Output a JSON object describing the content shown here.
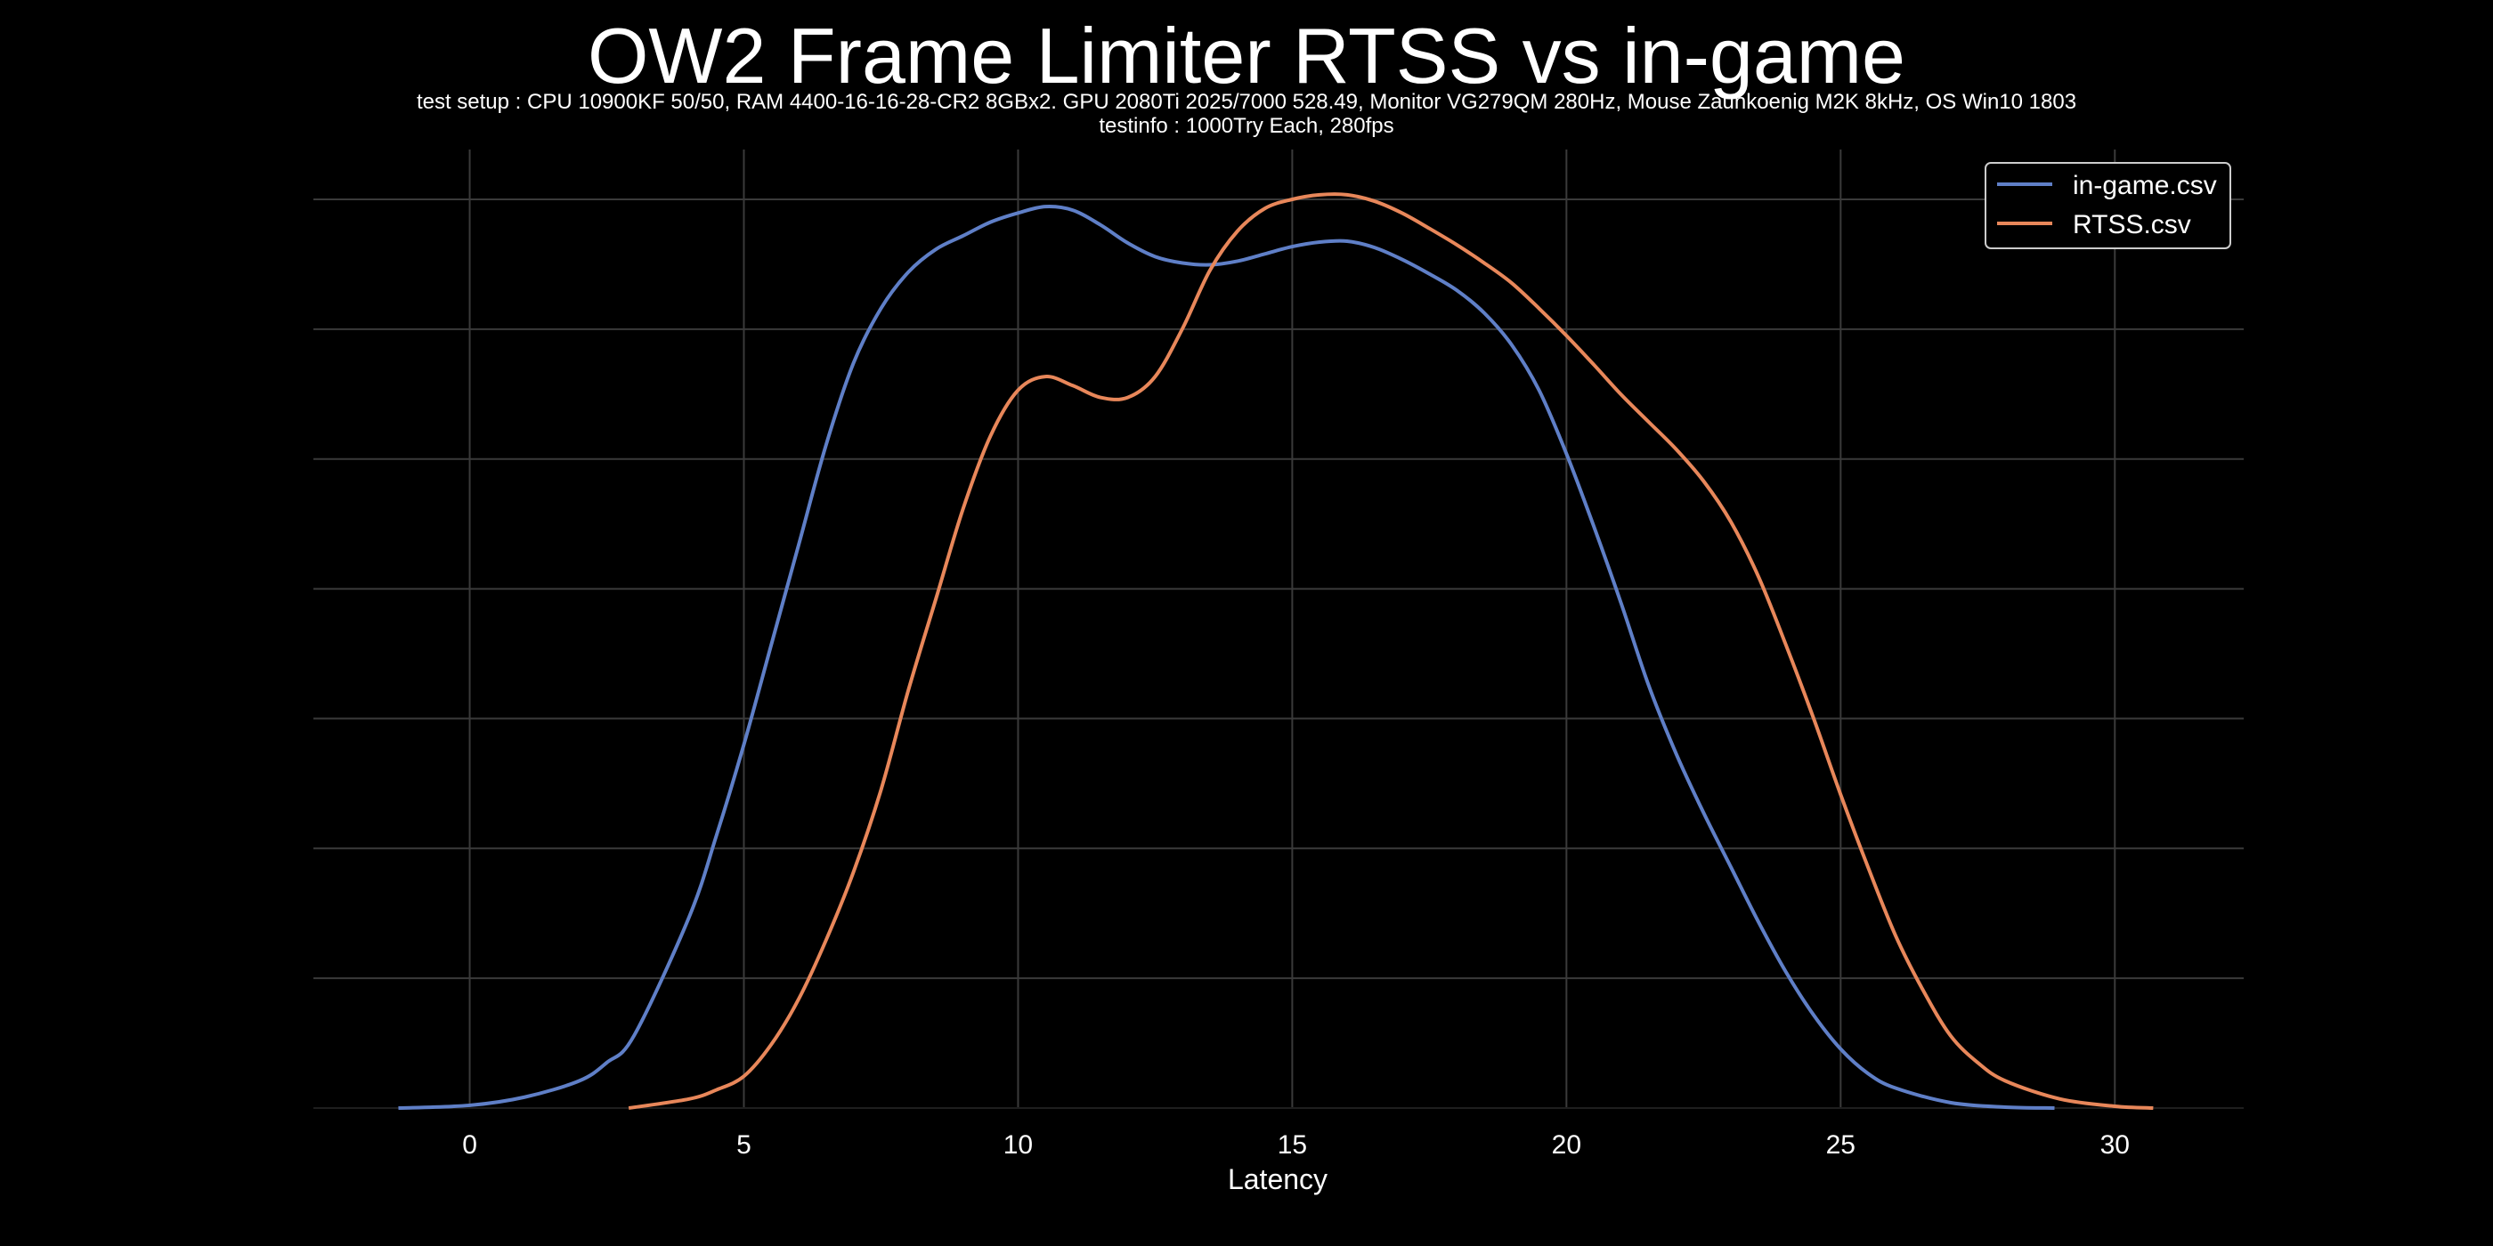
{
  "chart_data": {
    "type": "line",
    "title": "OW2 Frame Limiter RTSS vs in-game",
    "subtitle_lines": [
      "test setup : CPU 10900KF 50/50, RAM 4400-16-16-28-CR2 8GBx2. GPU 2080Ti 2025/7000 528.49, Monitor VG279QM 280Hz, Mouse Zaunkoenig M2K 8kHz, OS Win10 1803",
      "testinfo : 1000Try Each, 280fps"
    ],
    "xlabel": "Latency",
    "ylabel": "",
    "xlim": [
      -2.85,
      32.35
    ],
    "ylim": [
      0,
      1.0
    ],
    "x_ticks": [
      0,
      5,
      10,
      15,
      20,
      25,
      30
    ],
    "y_ticks": [
      0,
      0.1429,
      0.2857,
      0.4286,
      0.5714,
      0.7143,
      0.8571,
      1.0
    ],
    "grid": true,
    "legend_position": "top-right",
    "series": [
      {
        "name": "in-game.csv",
        "color": "#5f7fc7",
        "x": [
          -1.3,
          0,
          1,
          2,
          2.5,
          3,
          4,
          4.5,
          5,
          5.5,
          6,
          6.5,
          7,
          7.5,
          8,
          8.5,
          9,
          9.5,
          10,
          10.5,
          11,
          11.5,
          12,
          12.5,
          13,
          13.5,
          14,
          14.5,
          15,
          15.5,
          16,
          16.5,
          17,
          17.5,
          18,
          18.5,
          19,
          19.5,
          20,
          20.5,
          21,
          21.5,
          22,
          22.5,
          23,
          23.5,
          24,
          24.5,
          25,
          25.5,
          26,
          27,
          28,
          28.9
        ],
        "y": [
          0,
          0.003,
          0.012,
          0.03,
          0.05,
          0.08,
          0.21,
          0.3,
          0.4,
          0.51,
          0.62,
          0.73,
          0.82,
          0.88,
          0.92,
          0.945,
          0.96,
          0.975,
          0.985,
          0.992,
          0.988,
          0.972,
          0.952,
          0.937,
          0.93,
          0.928,
          0.932,
          0.94,
          0.948,
          0.953,
          0.954,
          0.947,
          0.934,
          0.918,
          0.9,
          0.875,
          0.84,
          0.79,
          0.72,
          0.64,
          0.555,
          0.465,
          0.39,
          0.325,
          0.265,
          0.205,
          0.15,
          0.103,
          0.065,
          0.038,
          0.022,
          0.006,
          0.001,
          0
        ]
      },
      {
        "name": "RTSS.csv",
        "color": "#e8875a",
        "x": [
          2.9,
          4,
          4.5,
          5,
          5.5,
          6,
          6.5,
          7,
          7.5,
          8,
          8.5,
          9,
          9.5,
          10,
          10.5,
          11,
          11.5,
          12,
          12.5,
          13,
          13.5,
          14,
          14.5,
          15,
          15.5,
          16,
          16.5,
          17,
          17.5,
          18,
          18.5,
          19,
          19.5,
          20,
          20.5,
          21,
          21.5,
          22,
          22.5,
          23,
          23.5,
          24,
          24.5,
          25,
          25.5,
          26,
          26.5,
          27,
          27.5,
          28,
          29,
          30,
          30.7
        ],
        "y": [
          0,
          0.01,
          0.02,
          0.035,
          0.07,
          0.12,
          0.185,
          0.26,
          0.35,
          0.46,
          0.56,
          0.66,
          0.74,
          0.79,
          0.805,
          0.795,
          0.782,
          0.782,
          0.805,
          0.858,
          0.922,
          0.965,
          0.99,
          1.0,
          1.005,
          1.005,
          0.998,
          0.985,
          0.968,
          0.95,
          0.93,
          0.908,
          0.88,
          0.85,
          0.818,
          0.785,
          0.755,
          0.725,
          0.69,
          0.645,
          0.585,
          0.51,
          0.43,
          0.345,
          0.265,
          0.19,
          0.13,
          0.08,
          0.05,
          0.03,
          0.01,
          0.002,
          0
        ]
      }
    ]
  }
}
